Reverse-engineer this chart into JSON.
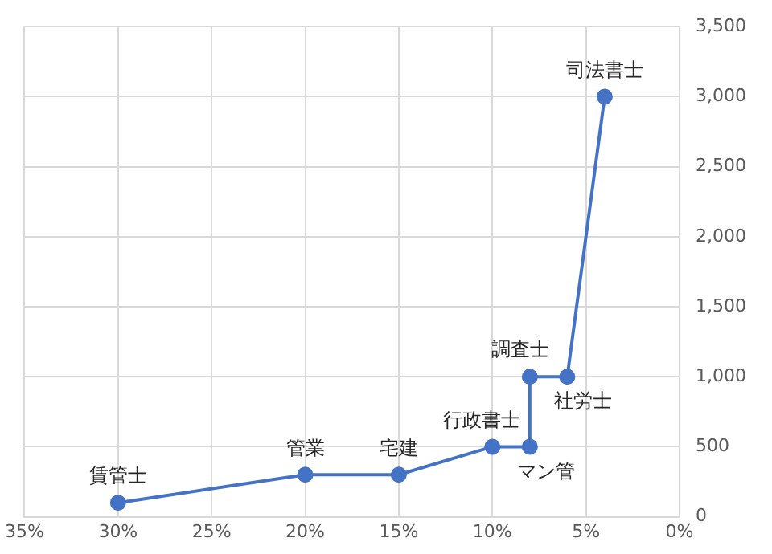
{
  "chart_data": {
    "type": "line",
    "x": [
      30,
      20,
      15,
      10,
      8,
      8,
      6,
      4
    ],
    "series": [
      {
        "color": "#4472c4",
        "values": [
          100,
          300,
          300,
          500,
          500,
          1000,
          1000,
          3000
        ]
      }
    ],
    "xlim": [
      35,
      0
    ],
    "xticks": [
      {
        "value": 35,
        "label": "35%"
      },
      {
        "value": 30,
        "label": "30%"
      },
      {
        "value": 25,
        "label": "25%"
      },
      {
        "value": 20,
        "label": "20%"
      },
      {
        "value": 15,
        "label": "15%"
      },
      {
        "value": 10,
        "label": "10%"
      },
      {
        "value": 5,
        "label": "5%"
      },
      {
        "value": 0,
        "label": "0%"
      }
    ],
    "ylim": [
      0,
      3500
    ],
    "yticks": [
      0,
      {
        "value": 500,
        "label": "500"
      },
      {
        "value": 1000,
        "label": "1,000"
      },
      {
        "value": 1500,
        "label": "1,500"
      },
      {
        "value": 2000,
        "label": "2,000"
      },
      {
        "value": 2500,
        "label": "2,500"
      },
      {
        "value": 3000,
        "label": "3,000"
      },
      {
        "value": 3500,
        "label": "3,500"
      }
    ],
    "annotations": [
      {
        "text": "賃管士",
        "x": 30,
        "y": 100
      },
      {
        "text": "管業",
        "x": 20,
        "y": 300
      },
      {
        "text": "宅建",
        "x": 15,
        "y": 300
      },
      {
        "text": "行政書士",
        "x": 10,
        "y": 500
      },
      {
        "text": "マン管",
        "x": 8,
        "y": 500
      },
      {
        "text": "調査士",
        "x": 8,
        "y": 1000
      },
      {
        "text": "社労士",
        "x": 6,
        "y": 1000
      },
      {
        "text": "司法書士",
        "x": 4,
        "y": 3000
      }
    ],
    "grid": true,
    "marker": "circle",
    "line_style": "solid"
  }
}
